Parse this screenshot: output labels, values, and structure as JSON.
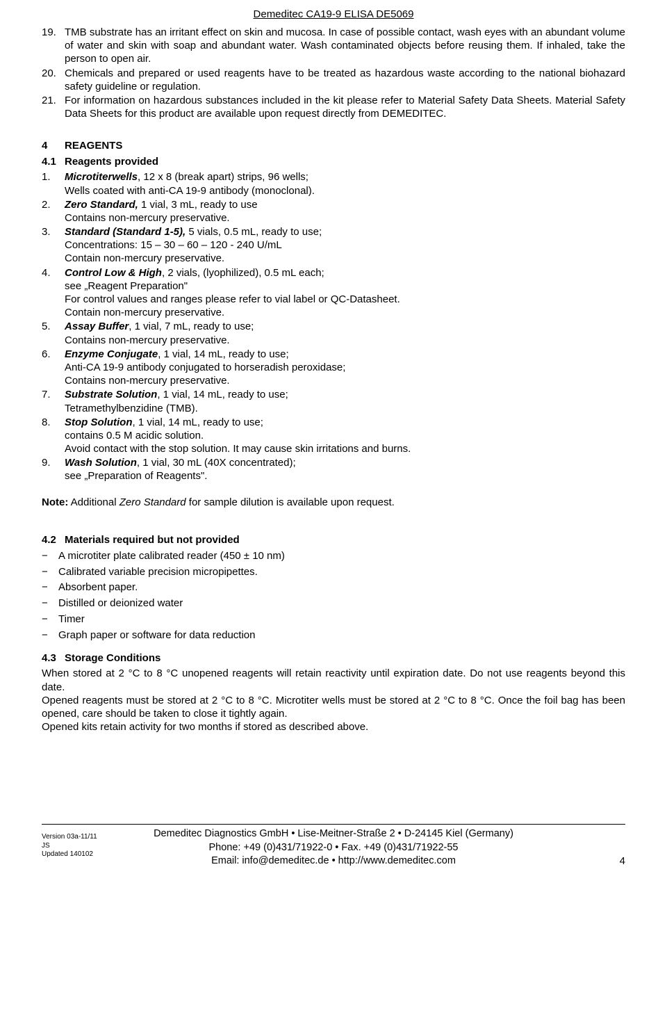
{
  "header": {
    "title": "Demeditec CA19-9 ELISA DE5069"
  },
  "top_items": [
    {
      "n": "19.",
      "t": "TMB substrate has an irritant effect on skin and mucosa. In case of possible contact, wash eyes with an abundant volume of water and skin with soap and abundant water. Wash contaminated objects before reusing them. If inhaled, take the person to open air."
    },
    {
      "n": "20.",
      "t": "Chemicals and prepared or used reagents have to be treated as hazardous waste according to the national biohazard safety guideline or regulation."
    },
    {
      "n": "21.",
      "t": "For information on hazardous substances included in the kit please refer to Material Safety Data Sheets. Material Safety Data Sheets for this product are available upon request directly from DEMEDITEC."
    }
  ],
  "s4": {
    "num": "4",
    "title": "REAGENTS"
  },
  "s41": {
    "num": "4.1",
    "title": "Reagents provided"
  },
  "reagents": [
    {
      "n": "1.",
      "lead": "Microtiterwells",
      "after": ", 12 x 8 (break apart) strips, 96 wells;",
      "lines": [
        "Wells coated with anti-CA 19-9 antibody (monoclonal)."
      ]
    },
    {
      "n": "2.",
      "lead": "Zero Standard,",
      "after": " 1 vial, 3 mL, ready to use",
      "lines": [
        "Contains non-mercury preservative."
      ]
    },
    {
      "n": "3.",
      "lead": "Standard (Standard 1-5),",
      "after": " 5 vials, 0.5 mL, ready to use;",
      "lines": [
        "Concentrations:  15 – 30 – 60 – 120 - 240 U/mL",
        "Contain non-mercury preservative."
      ]
    },
    {
      "n": "4.",
      "lead": "Control Low & High",
      "after": ", 2 vials, (lyophilized), 0.5 mL each;",
      "lines": [
        "see „Reagent Preparation\"",
        "For control values and ranges please refer to vial label or QC-Datasheet.",
        "Contain non-mercury preservative."
      ]
    },
    {
      "n": "5.",
      "lead": "Assay Buffer",
      "after": ", 1 vial, 7 mL, ready to use;",
      "lines": [
        "Contains non-mercury preservative."
      ]
    },
    {
      "n": "6.",
      "lead": "Enzyme Conjugate",
      "after": ", 1 vial, 14 mL, ready to use;",
      "lines": [
        "Anti-CA 19-9 antibody conjugated to horseradish peroxidase;",
        "Contains non-mercury preservative."
      ]
    },
    {
      "n": "7.",
      "lead": "Substrate Solution",
      "after": ", 1 vial, 14 mL, ready to use;",
      "lines": [
        "Tetramethylbenzidine (TMB)."
      ]
    },
    {
      "n": "8.",
      "lead": "Stop Solution",
      "after": ", 1 vial, 14 mL, ready to use;",
      "lines": [
        "contains 0.5 M acidic solution.",
        "Avoid contact with the stop solution. It may cause skin irritations and burns."
      ]
    },
    {
      "n": "9.",
      "lead": "Wash Solution",
      "after": ", 1 vial, 30 mL (40X concentrated);",
      "lines": [
        "see „Preparation of Reagents\"."
      ]
    }
  ],
  "note": {
    "b": "Note:",
    "mid": " Additional ",
    "i": "Zero Standard",
    "end": " for sample dilution is available upon request."
  },
  "s42": {
    "num": "4.2",
    "title": "Materials required but not provided"
  },
  "materials": [
    "A microtiter plate calibrated reader (450 ± 10 nm)",
    "Calibrated variable precision micropipettes.",
    "Absorbent paper.",
    "Distilled or deionized water",
    "Timer",
    "Graph paper or software for data reduction"
  ],
  "s43": {
    "num": "4.3",
    "title": "Storage Conditions"
  },
  "storage": [
    "When stored at 2 °C to 8 °C unopened reagents will retain reactivity until expiration date. Do not use reagents beyond this date.",
    "Opened reagents must be stored at 2 °C to 8 °C.  Microtiter wells must be stored at 2 °C to 8 °C. Once the foil bag has been opened, care should be taken to close it tightly again.",
    "Opened kits retain activity for two months if stored as described above."
  ],
  "footer": {
    "l1": "Demeditec Diagnostics GmbH • Lise-Meitner-Straße 2 • D-24145 Kiel (Germany)",
    "l2": "Phone: +49 (0)431/71922-0 • Fax. +49 (0)431/71922-55",
    "l3": "Email: info@demeditec.de • http://www.demeditec.com",
    "v1": "Version 03a-11/11",
    "v2": "JS",
    "v3": "Updated 140102",
    "page": "4"
  }
}
